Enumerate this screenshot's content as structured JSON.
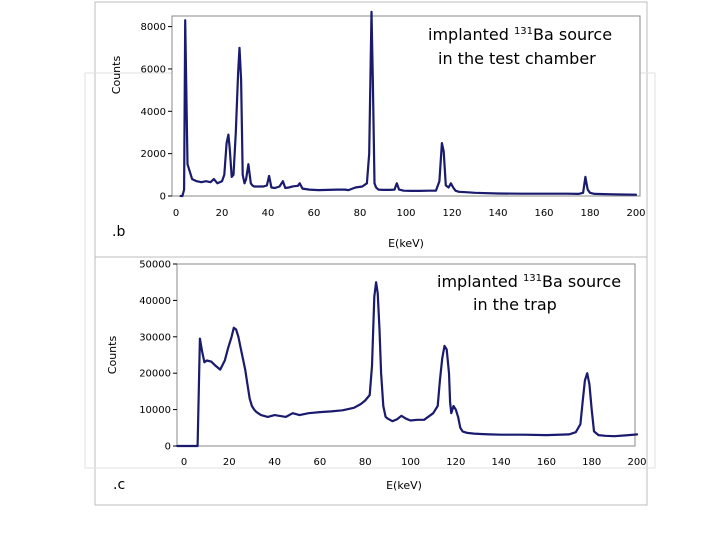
{
  "colors": {
    "series": "#1a1a6e",
    "frame": "#888888",
    "axis": "#000000"
  },
  "chart_data": [
    {
      "type": "line",
      "panel_tag": "",
      "annotation": {
        "line1_pre": "implanted ",
        "isotope_mass": "131",
        "line1_post": "Ba  source",
        "line2": "in the test chamber"
      },
      "ylabel": "Counts",
      "xlabel": "E(keV)",
      "xlim": [
        0,
        200
      ],
      "ylim": [
        0,
        8500
      ],
      "x_ticks": [
        0,
        20,
        40,
        60,
        80,
        100,
        120,
        140,
        160,
        180,
        200
      ],
      "y_ticks": [
        0,
        2000,
        4000,
        6000,
        8000
      ],
      "series": [
        {
          "x": [
            2,
            2.8,
            3.5,
            4,
            5,
            7,
            9,
            11,
            13,
            15,
            16.5,
            18,
            20,
            21,
            22,
            22.8,
            23.4,
            24.2,
            25,
            26,
            27,
            27.6,
            28.3,
            29,
            29.8,
            30.5,
            31.5,
            32.5,
            33.2,
            34,
            36,
            38,
            39.5,
            40.5,
            41.5,
            43,
            45,
            46.5,
            47.5,
            49,
            51,
            53,
            53.8,
            55,
            58,
            62,
            66,
            70,
            73.5,
            75,
            78,
            81,
            83,
            84,
            85,
            85.6,
            86.3,
            87,
            88,
            90,
            93,
            95,
            96,
            97,
            99,
            102,
            106,
            110,
            113,
            114.5,
            115.6,
            116.4,
            117.3,
            118.5,
            119.5,
            120.5,
            121.5,
            123,
            126,
            130,
            140,
            150,
            160,
            170,
            175,
            177,
            178,
            178.5,
            179,
            180,
            182,
            190,
            200
          ],
          "y": [
            0,
            0,
            300,
            8300,
            1500,
            800,
            700,
            650,
            700,
            650,
            800,
            600,
            700,
            1000,
            2500,
            2900,
            2200,
            900,
            1000,
            3000,
            5800,
            7000,
            5500,
            1000,
            600,
            800,
            1500,
            600,
            500,
            450,
            450,
            450,
            500,
            950,
            400,
            380,
            450,
            700,
            380,
            400,
            460,
            480,
            600,
            350,
            300,
            280,
            290,
            300,
            300,
            280,
            400,
            450,
            600,
            2000,
            8700,
            5300,
            600,
            400,
            300,
            290,
            290,
            300,
            600,
            300,
            250,
            240,
            240,
            250,
            250,
            700,
            2500,
            2100,
            500,
            400,
            600,
            400,
            250,
            200,
            180,
            150,
            120,
            110,
            110,
            110,
            100,
            150,
            900,
            600,
            300,
            150,
            100,
            80,
            60
          ]
        }
      ]
    },
    {
      "type": "line",
      "panel_tag": ".b",
      "annotation": {
        "line1_pre": "implanted ",
        "isotope_mass": "131",
        "line1_post": "Ba source",
        "line2": "in the trap"
      },
      "ylabel": "Counts",
      "xlabel": "E(keV)",
      "xlim": [
        0,
        200
      ],
      "ylim": [
        0,
        50000
      ],
      "x_ticks": [
        0,
        20,
        40,
        60,
        80,
        100,
        120,
        140,
        160,
        180,
        200
      ],
      "y_ticks": [
        0,
        10000,
        20000,
        30000,
        40000,
        50000
      ],
      "series": [
        {
          "x": [
            -3,
            5,
            6,
            7,
            8,
            9,
            10,
            12,
            14,
            16,
            18,
            19.5,
            21,
            22,
            23,
            24,
            25,
            26,
            27,
            28,
            29,
            30,
            31,
            32,
            34,
            37,
            40,
            43,
            45,
            48,
            51,
            55,
            60,
            65,
            70,
            75,
            78,
            80,
            82,
            83,
            84,
            84.8,
            85.5,
            86.3,
            87,
            88,
            89,
            90,
            92,
            94,
            96,
            98,
            100,
            103,
            106,
            110,
            112,
            113,
            114,
            115,
            116,
            117,
            117.5,
            118,
            119,
            120,
            121,
            122,
            123,
            124,
            125,
            128,
            131,
            135,
            140,
            150,
            160,
            170,
            173,
            175,
            176,
            177,
            178,
            179,
            180,
            181,
            183,
            186,
            190,
            195,
            200
          ],
          "y": [
            0,
            0,
            0,
            29500,
            26000,
            23000,
            23500,
            23200,
            22000,
            21000,
            23500,
            27000,
            30000,
            32500,
            32000,
            30000,
            27000,
            24000,
            21000,
            17000,
            13000,
            11000,
            10000,
            9300,
            8500,
            8000,
            8500,
            8200,
            8000,
            9000,
            8500,
            9000,
            9300,
            9500,
            9800,
            10500,
            11500,
            12500,
            14000,
            22000,
            41000,
            45000,
            42000,
            32000,
            20000,
            11000,
            8000,
            7500,
            6800,
            7300,
            8300,
            7500,
            7000,
            7200,
            7200,
            9000,
            11000,
            18000,
            24000,
            27500,
            26500,
            20000,
            12000,
            9000,
            11000,
            10000,
            8000,
            5000,
            4000,
            3800,
            3600,
            3400,
            3300,
            3200,
            3100,
            3100,
            3000,
            3200,
            3800,
            6000,
            12000,
            18000,
            20000,
            17000,
            10000,
            4000,
            3000,
            2800,
            2700,
            2900,
            3200
          ]
        }
      ]
    }
  ],
  "footer_tag": ".c"
}
